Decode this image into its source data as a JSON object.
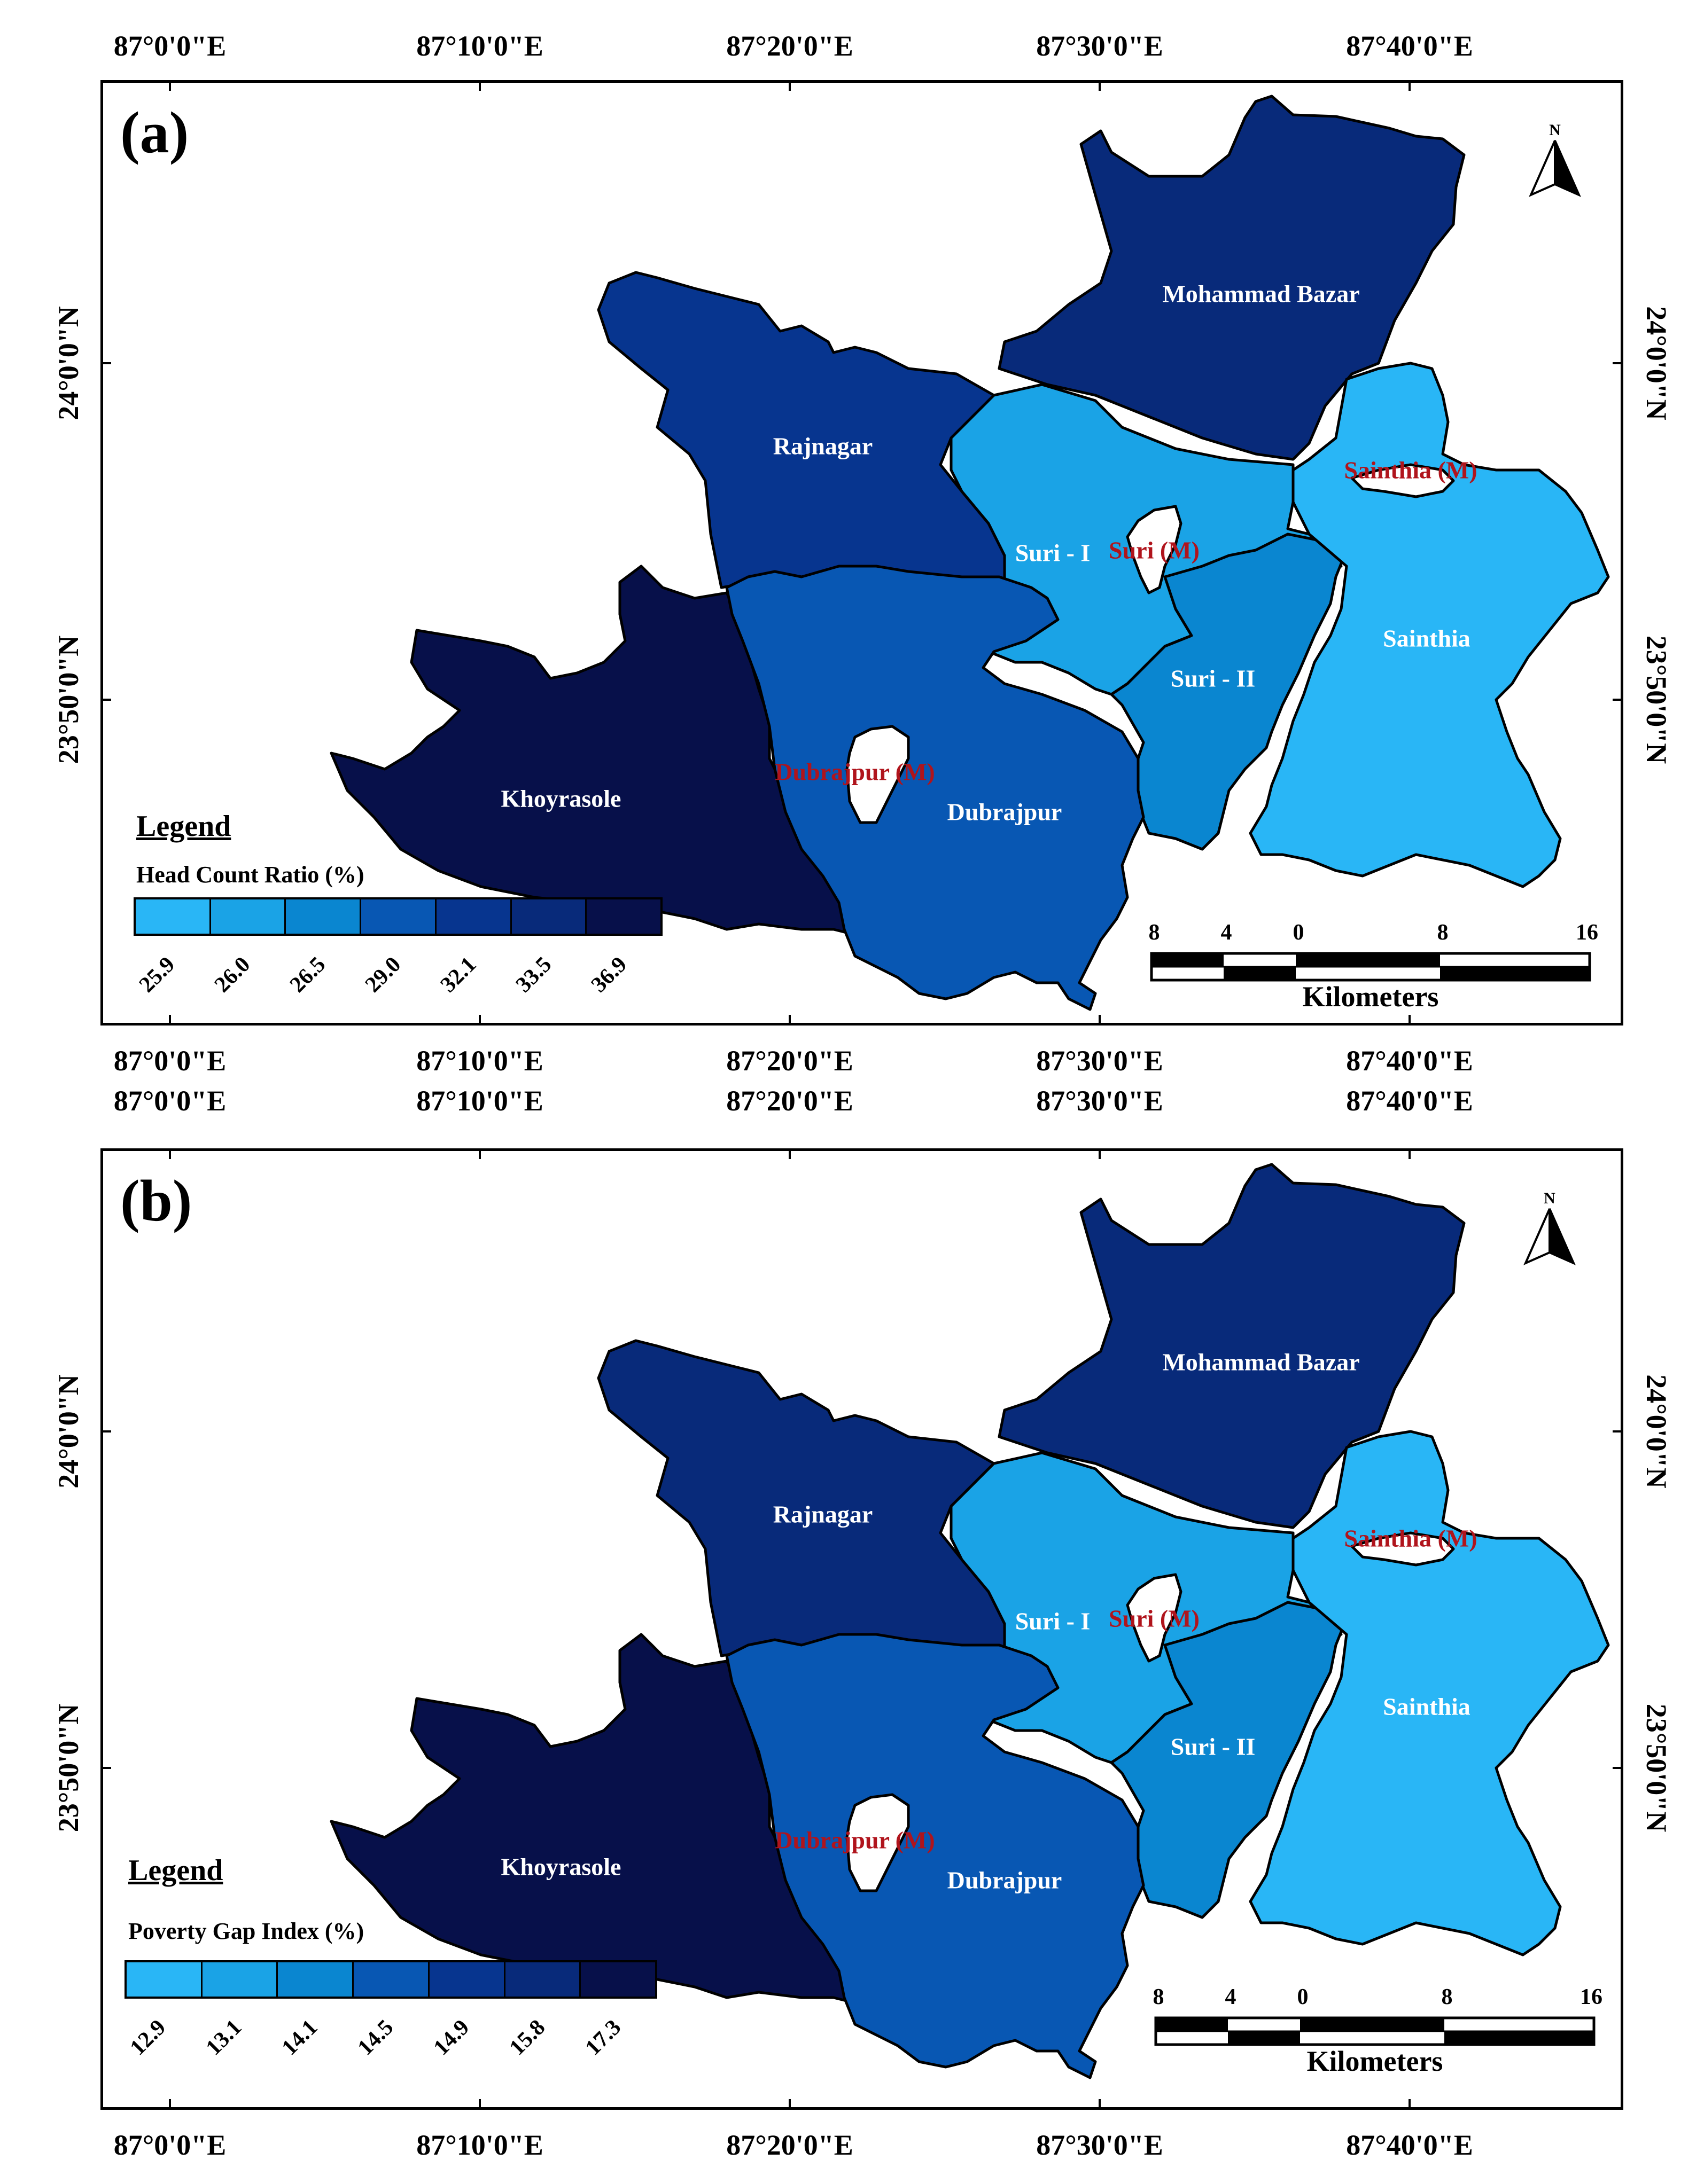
{
  "colors": {
    "c1": "#29b6f6",
    "c2": "#1aa3e6",
    "c3": "#0a86d0",
    "c4": "#0857b3",
    "c5": "#07358f",
    "c6": "#082a7a",
    "c7": "#07104a",
    "municipality": "#ffffff",
    "muni_text": "#b0141c"
  },
  "panels": [
    {
      "label": "(a)",
      "longitude_labels": [
        "87°0'0\"E",
        "87°10'0\"E",
        "87°20'0\"E",
        "87°30'0\"E",
        "87°40'0\"E"
      ],
      "latitude_labels": [
        "24°0'0\"N",
        "23°50'0\"N"
      ],
      "north_label": "N",
      "blocks": {
        "mohammad_bazar": "Mohammad Bazar",
        "rajnagar": "Rajnagar",
        "suri_1": "Suri - I",
        "suri_2": "Suri - II",
        "sainthia": "Sainthia",
        "khoyrasole": "Khoyrasole",
        "dubrajpur": "Dubrajpur"
      },
      "municipalities": {
        "sainthia_m": "Sainthia (M)",
        "suri_m": "Suri (M)",
        "dubrajpur_m": "Dubrajpur (M)"
      },
      "legend": {
        "title": "Legend",
        "variable": "Head Count Ratio (%)",
        "classes": [
          "25.9",
          "26.0",
          "26.5",
          "29.0",
          "32.1",
          "33.5",
          "36.9"
        ]
      },
      "scale": {
        "ticks": [
          "8",
          "4",
          "0",
          "8",
          "16"
        ],
        "unit": "Kilometers"
      }
    },
    {
      "label": "(b)",
      "longitude_labels": [
        "87°0'0\"E",
        "87°10'0\"E",
        "87°20'0\"E",
        "87°30'0\"E",
        "87°40'0\"E"
      ],
      "latitude_labels": [
        "24°0'0\"N",
        "23°50'0\"N"
      ],
      "north_label": "N",
      "blocks": {
        "mohammad_bazar": "Mohammad Bazar",
        "rajnagar": "Rajnagar",
        "suri_1": "Suri - I",
        "suri_2": "Suri - II",
        "sainthia": "Sainthia",
        "khoyrasole": "Khoyrasole",
        "dubrajpur": "Dubrajpur"
      },
      "municipalities": {
        "sainthia_m": "Sainthia (M)",
        "suri_m": "Suri (M)",
        "dubrajpur_m": "Dubrajpur (M)"
      },
      "legend": {
        "title": "Legend",
        "variable": "Poverty Gap Index (%)",
        "classes": [
          "12.9",
          "13.1",
          "14.1",
          "14.5",
          "14.9",
          "15.8",
          "17.3"
        ]
      },
      "scale": {
        "ticks": [
          "8",
          "4",
          "0",
          "8",
          "16"
        ],
        "unit": "Kilometers"
      }
    }
  ]
}
